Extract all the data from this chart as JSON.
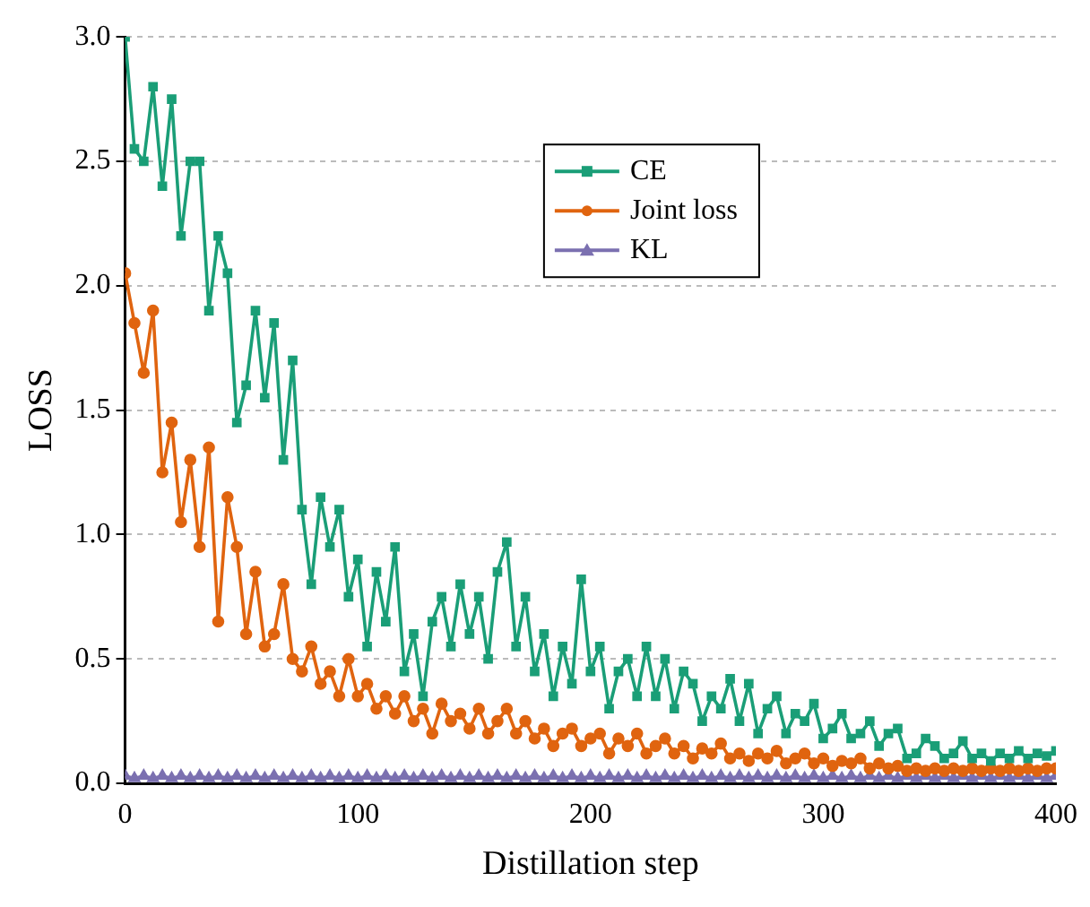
{
  "chart_data": {
    "type": "line",
    "xlabel": "Distillation step",
    "ylabel": "LOSS",
    "x": [
      0,
      4,
      8,
      12,
      16,
      20,
      24,
      28,
      32,
      36,
      40,
      44,
      48,
      52,
      56,
      60,
      64,
      68,
      72,
      76,
      80,
      84,
      88,
      92,
      96,
      100,
      104,
      108,
      112,
      116,
      120,
      124,
      128,
      132,
      136,
      140,
      144,
      148,
      152,
      156,
      160,
      164,
      168,
      172,
      176,
      180,
      184,
      188,
      192,
      196,
      200,
      204,
      208,
      212,
      216,
      220,
      224,
      228,
      232,
      236,
      240,
      244,
      248,
      252,
      256,
      260,
      264,
      268,
      272,
      276,
      280,
      284,
      288,
      292,
      296,
      300,
      304,
      308,
      312,
      316,
      320,
      324,
      328,
      332,
      336,
      340,
      344,
      348,
      352,
      356,
      360,
      364,
      368,
      372,
      376,
      380,
      384,
      388,
      392,
      396,
      400
    ],
    "series": [
      {
        "name": "CE",
        "color": "#1a9e77",
        "marker": "square",
        "values": [
          3.0,
          2.55,
          2.5,
          2.8,
          2.4,
          2.75,
          2.2,
          2.5,
          2.5,
          1.9,
          2.2,
          2.05,
          1.45,
          1.6,
          1.9,
          1.55,
          1.85,
          1.3,
          1.7,
          1.1,
          0.8,
          1.15,
          0.95,
          1.1,
          0.75,
          0.9,
          0.55,
          0.85,
          0.65,
          0.95,
          0.45,
          0.6,
          0.35,
          0.65,
          0.75,
          0.55,
          0.8,
          0.6,
          0.75,
          0.5,
          0.85,
          0.97,
          0.55,
          0.75,
          0.45,
          0.6,
          0.35,
          0.55,
          0.4,
          0.82,
          0.45,
          0.55,
          0.3,
          0.45,
          0.5,
          0.35,
          0.55,
          0.35,
          0.5,
          0.3,
          0.45,
          0.4,
          0.25,
          0.35,
          0.3,
          0.42,
          0.25,
          0.4,
          0.2,
          0.3,
          0.35,
          0.2,
          0.28,
          0.25,
          0.32,
          0.18,
          0.22,
          0.28,
          0.18,
          0.2,
          0.25,
          0.15,
          0.2,
          0.22,
          0.1,
          0.12,
          0.18,
          0.15,
          0.1,
          0.12,
          0.17,
          0.1,
          0.12,
          0.09,
          0.12,
          0.1,
          0.13,
          0.1,
          0.12,
          0.11,
          0.13
        ]
      },
      {
        "name": "Joint loss",
        "color": "#e0640f",
        "marker": "circle",
        "values": [
          2.05,
          1.85,
          1.65,
          1.9,
          1.25,
          1.45,
          1.05,
          1.3,
          0.95,
          1.35,
          0.65,
          1.15,
          0.95,
          0.6,
          0.85,
          0.55,
          0.6,
          0.8,
          0.5,
          0.45,
          0.55,
          0.4,
          0.45,
          0.35,
          0.5,
          0.35,
          0.4,
          0.3,
          0.35,
          0.28,
          0.35,
          0.25,
          0.3,
          0.2,
          0.32,
          0.25,
          0.28,
          0.22,
          0.3,
          0.2,
          0.25,
          0.3,
          0.2,
          0.25,
          0.18,
          0.22,
          0.15,
          0.2,
          0.22,
          0.15,
          0.18,
          0.2,
          0.12,
          0.18,
          0.15,
          0.2,
          0.12,
          0.15,
          0.18,
          0.12,
          0.15,
          0.1,
          0.14,
          0.12,
          0.16,
          0.1,
          0.12,
          0.09,
          0.12,
          0.1,
          0.13,
          0.08,
          0.1,
          0.12,
          0.08,
          0.1,
          0.07,
          0.09,
          0.08,
          0.1,
          0.06,
          0.08,
          0.06,
          0.07,
          0.05,
          0.06,
          0.05,
          0.06,
          0.05,
          0.06,
          0.05,
          0.06,
          0.05,
          0.06,
          0.05,
          0.06,
          0.05,
          0.06,
          0.05,
          0.06,
          0.06
        ]
      },
      {
        "name": "KL",
        "color": "#7b70b0",
        "marker": "triangle",
        "values": [
          0.03,
          0.02,
          0.03,
          0.02,
          0.03,
          0.02,
          0.03,
          0.02,
          0.03,
          0.02,
          0.03,
          0.02,
          0.03,
          0.02,
          0.03,
          0.02,
          0.03,
          0.02,
          0.03,
          0.02,
          0.03,
          0.02,
          0.03,
          0.02,
          0.03,
          0.02,
          0.03,
          0.02,
          0.03,
          0.02,
          0.03,
          0.02,
          0.03,
          0.02,
          0.03,
          0.02,
          0.03,
          0.02,
          0.03,
          0.02,
          0.03,
          0.02,
          0.03,
          0.02,
          0.03,
          0.02,
          0.03,
          0.02,
          0.03,
          0.02,
          0.03,
          0.02,
          0.03,
          0.02,
          0.03,
          0.02,
          0.03,
          0.02,
          0.03,
          0.02,
          0.03,
          0.02,
          0.03,
          0.02,
          0.03,
          0.02,
          0.03,
          0.02,
          0.03,
          0.02,
          0.03,
          0.02,
          0.03,
          0.02,
          0.03,
          0.02,
          0.03,
          0.02,
          0.03,
          0.02,
          0.03,
          0.02,
          0.03,
          0.02,
          0.03,
          0.02,
          0.03,
          0.02,
          0.03,
          0.02,
          0.03,
          0.02,
          0.03,
          0.02,
          0.03,
          0.02,
          0.03,
          0.02,
          0.03,
          0.02,
          0.03
        ]
      }
    ],
    "xlim": [
      0,
      400
    ],
    "xticks": [
      0,
      100,
      200,
      300,
      400
    ],
    "ylim": [
      0,
      3
    ],
    "yticks": [
      {
        "value": 0,
        "label": "0.0"
      },
      {
        "value": 0.5,
        "label": "0.5"
      },
      {
        "value": 1,
        "label": "1.0"
      },
      {
        "value": 1.5,
        "label": "1.5"
      },
      {
        "value": 2,
        "label": "2.0"
      },
      {
        "value": 2.5,
        "label": "2.5"
      },
      {
        "value": 3,
        "label": "3.0"
      }
    ],
    "grid": "y",
    "legend": "top right",
    "line_style": "solid"
  }
}
